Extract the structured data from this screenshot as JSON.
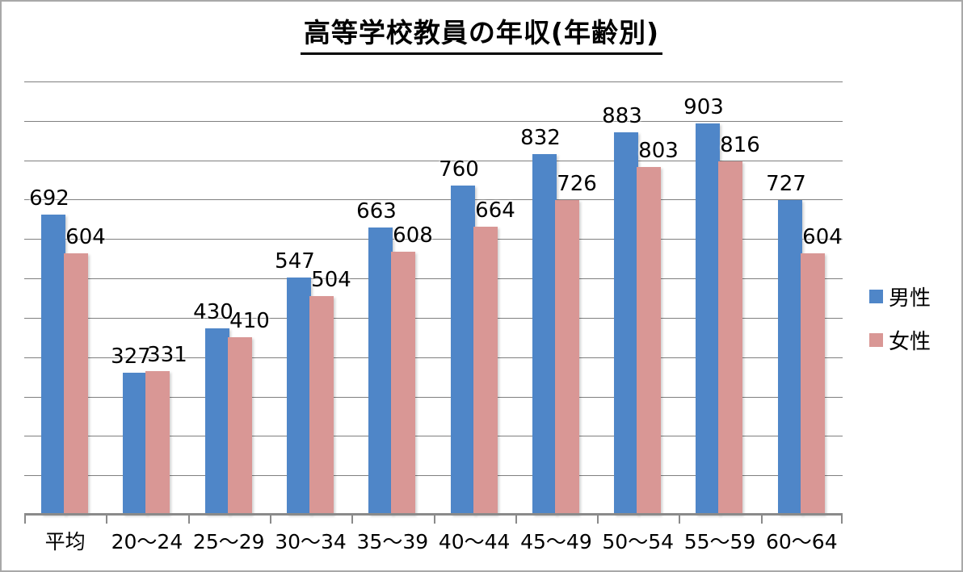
{
  "title": "高等学校教員の年収(年齢別)",
  "chart_data": {
    "type": "bar",
    "title": "高等学校教員の年収(年齢別)",
    "categories": [
      "平均",
      "20〜24",
      "25〜29",
      "30〜34",
      "35〜39",
      "40〜44",
      "45〜49",
      "50〜54",
      "55〜59",
      "60〜64"
    ],
    "series": [
      {
        "name": "男性",
        "color": "#4F86C8",
        "values": [
          692,
          327,
          430,
          547,
          663,
          760,
          832,
          883,
          903,
          727
        ]
      },
      {
        "name": "女性",
        "color": "#D99795",
        "values": [
          604,
          331,
          410,
          504,
          608,
          664,
          726,
          803,
          816,
          604
        ]
      }
    ],
    "xlabel": "",
    "ylabel": "",
    "ylim": [
      0,
      1000
    ],
    "gridline_divisions": 11,
    "grid": true,
    "y_axis_labels_visible": false,
    "data_labels": true,
    "legend_position": "right",
    "colors": {
      "gridline": "#7f7f7f",
      "axis": "#8a8a8a",
      "text": "#000000"
    }
  }
}
